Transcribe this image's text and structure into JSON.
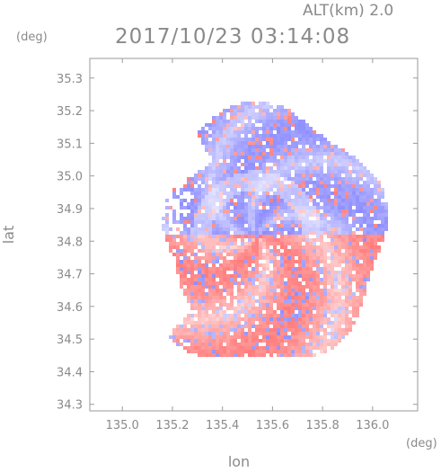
{
  "header": {
    "altitude": "ALT(km)  2.0",
    "datetime": "2017/10/23 03:14:08",
    "lat_unit": "(deg)",
    "lon_unit": "(deg)"
  },
  "chart_data": {
    "type": "heatmap",
    "title": "2017/10/23 03:14:08",
    "subtitle": "ALT(km)  2.0",
    "xlabel": "lon",
    "ylabel": "lat",
    "x_unit": "(deg)",
    "y_unit": "(deg)",
    "xlim": [
      134.87,
      136.18
    ],
    "ylim": [
      34.28,
      35.36
    ],
    "x_ticks": [
      135.0,
      135.2,
      135.4,
      135.6,
      135.8,
      136.0
    ],
    "x_tick_labels": [
      "135.0",
      "135.2",
      "135.4",
      "135.6",
      "135.8",
      "136.0"
    ],
    "y_ticks": [
      34.3,
      34.4,
      34.5,
      34.6,
      34.7,
      34.8,
      34.9,
      35.0,
      35.1,
      35.2,
      35.3
    ],
    "y_tick_labels": [
      "34.3",
      "34.4",
      "34.5",
      "34.6",
      "34.7",
      "34.8",
      "34.9",
      "35.0",
      "35.1",
      "35.2",
      "35.3"
    ],
    "radar_center": {
      "lon": 135.53,
      "lat": 34.82
    },
    "coverage_radius_deg": 0.52,
    "colors": {
      "approaching": "#8c8cff",
      "receding": "#ff7a7a",
      "axis": "#9a9a9a",
      "text": "#8a8a8a"
    },
    "grid": false
  }
}
